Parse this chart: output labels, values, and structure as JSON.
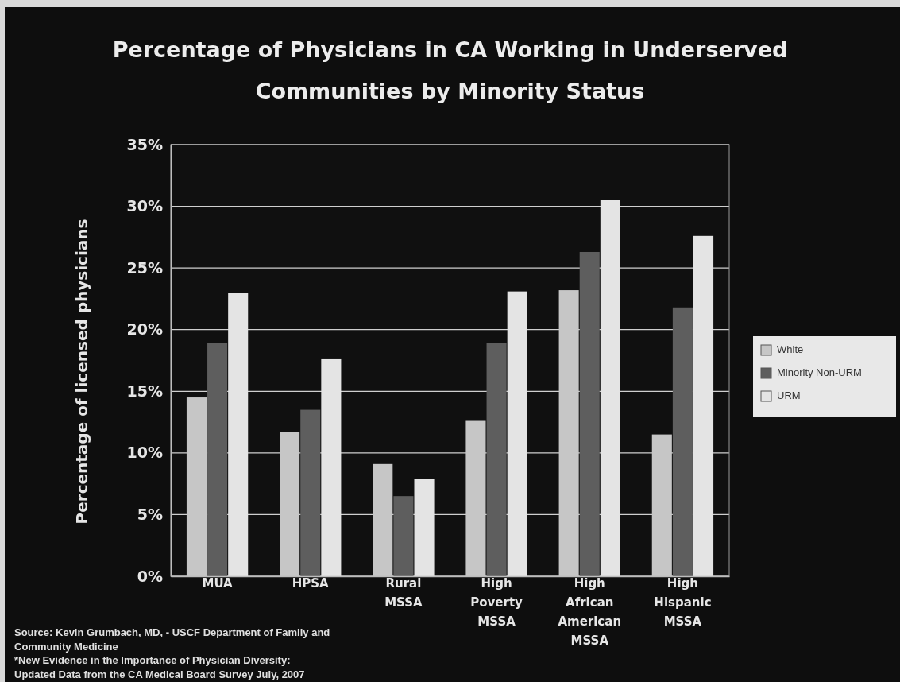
{
  "chart_data": {
    "type": "bar",
    "title": "Percentage of Physicians in CA Working in Underserved Communities by Minority Status",
    "ylabel": "Percentage of licensed physicians",
    "categories": [
      "MUA",
      "HPSA",
      "Rural MSSA",
      "High Poverty MSSA",
      "High African American MSSA",
      "High Hispanic MSSA"
    ],
    "series": [
      {
        "name": "White",
        "color": "#c6c6c6",
        "values": [
          14.5,
          11.7,
          9.1,
          12.6,
          23.2,
          11.5
        ]
      },
      {
        "name": "Minority Non-URM",
        "color": "#5e5e5e",
        "values": [
          18.9,
          13.5,
          6.5,
          18.9,
          26.3,
          21.8
        ]
      },
      {
        "name": "URM",
        "color": "#e4e4e4",
        "values": [
          23.0,
          17.6,
          7.9,
          23.1,
          30.5,
          27.6
        ]
      }
    ],
    "ylim": [
      0,
      35
    ],
    "yticks": [
      {
        "value": 0,
        "label": "0%"
      },
      {
        "value": 5,
        "label": "5%"
      },
      {
        "value": 10,
        "label": "10%"
      },
      {
        "value": 15,
        "label": "15%"
      },
      {
        "value": 20,
        "label": "20%"
      },
      {
        "value": 25,
        "label": "25%"
      },
      {
        "value": 30,
        "label": "30%"
      },
      {
        "value": 35,
        "label": "35%"
      }
    ],
    "grid": "y",
    "legend": "right",
    "annotations": [
      "Source: Kevin Grumbach, MD, - USCF Department of Family and Community Medicine",
      "*New Evidence in the Importance of Physician Diversity:",
      "Updated Data from the CA Medical Board Survey July, 2007"
    ]
  }
}
